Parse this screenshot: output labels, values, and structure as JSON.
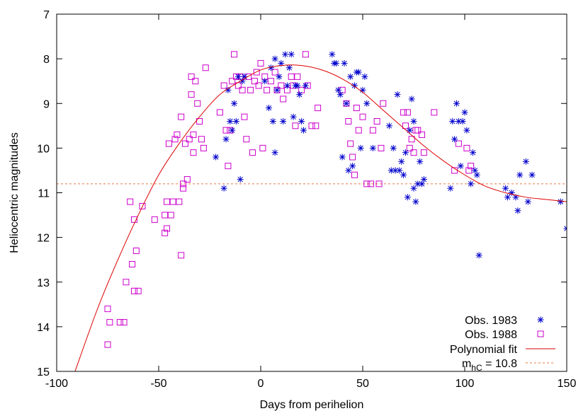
{
  "chart_data": {
    "type": "scatter",
    "xlabel": "Days from perihelion",
    "ylabel": "Heliocentric magnitudes",
    "xlim": [
      -100,
      150
    ],
    "ylim": [
      15,
      7
    ],
    "y_axis_inverted": true,
    "grid": false,
    "legend_position": "bottom-right",
    "x_ticks": [
      "-100",
      "-50",
      "0",
      "50",
      "100",
      "150"
    ],
    "y_ticks": [
      "7",
      "8",
      "9",
      "10",
      "11",
      "12",
      "13",
      "14",
      "15"
    ],
    "series": [
      {
        "name": "Obs. 1983",
        "marker": "asterisk",
        "color": "#0000cc",
        "points": [
          [
            -22,
            10.2
          ],
          [
            -18,
            10.9
          ],
          [
            -17,
            9.8
          ],
          [
            -16,
            8.7
          ],
          [
            -15,
            9.4
          ],
          [
            -14,
            9.6
          ],
          [
            -13,
            9.0
          ],
          [
            -12,
            9.4
          ],
          [
            -11,
            8.4
          ],
          [
            -10,
            10.7
          ],
          [
            -9,
            8.5
          ],
          [
            -8,
            8.4
          ],
          [
            2,
            8.5
          ],
          [
            4,
            9.1
          ],
          [
            5,
            8.2
          ],
          [
            6,
            9.4
          ],
          [
            7,
            10.1
          ],
          [
            7,
            8.0
          ],
          [
            8,
            8.7
          ],
          [
            9,
            8.4
          ],
          [
            10,
            8.1
          ],
          [
            11,
            9.4
          ],
          [
            12,
            7.9
          ],
          [
            13,
            8.6
          ],
          [
            14,
            8.2
          ],
          [
            15,
            7.9
          ],
          [
            16,
            9.3
          ],
          [
            17,
            8.6
          ],
          [
            18,
            8.6
          ],
          [
            19,
            8.8
          ],
          [
            20,
            9.4
          ],
          [
            21,
            9.6
          ],
          [
            22,
            8.6
          ],
          [
            35,
            7.9
          ],
          [
            36,
            8.1
          ],
          [
            37,
            8.1
          ],
          [
            38,
            8.7
          ],
          [
            39,
            8.8
          ],
          [
            40,
            10.2
          ],
          [
            41,
            8.1
          ],
          [
            42,
            9.0
          ],
          [
            43,
            10.5
          ],
          [
            44,
            8.4
          ],
          [
            45,
            10.4
          ],
          [
            46,
            8.6
          ],
          [
            47,
            8.3
          ],
          [
            48,
            8.3
          ],
          [
            49,
            10.0
          ],
          [
            50,
            8.7
          ],
          [
            51,
            8.4
          ],
          [
            52,
            9.0
          ],
          [
            55,
            10.0
          ],
          [
            63,
            9.5
          ],
          [
            64,
            10.5
          ],
          [
            65,
            10.0
          ],
          [
            66,
            10.5
          ],
          [
            67,
            8.8
          ],
          [
            68,
            10.5
          ],
          [
            69,
            10.3
          ],
          [
            70,
            10.6
          ],
          [
            71,
            10.1
          ],
          [
            72,
            11.1
          ],
          [
            73,
            9.6
          ],
          [
            74,
            8.9
          ],
          [
            75,
            10.9
          ],
          [
            75,
            9.4
          ],
          [
            76,
            11.2
          ],
          [
            77,
            10.8
          ],
          [
            78,
            10.3
          ],
          [
            79,
            10.8
          ],
          [
            80,
            10.7
          ],
          [
            93,
            10.9
          ],
          [
            94,
            9.4
          ],
          [
            95,
            9.8
          ],
          [
            96,
            9.0
          ],
          [
            97,
            9.4
          ],
          [
            98,
            10.4
          ],
          [
            99,
            9.4
          ],
          [
            100,
            9.2
          ],
          [
            101,
            9.6
          ],
          [
            103,
            10.8
          ],
          [
            104,
            10.1
          ],
          [
            105,
            10.5
          ],
          [
            106,
            10.6
          ],
          [
            107,
            12.4
          ],
          [
            120,
            10.9
          ],
          [
            121,
            11.1
          ],
          [
            123,
            11.0
          ],
          [
            125,
            11.1
          ],
          [
            126,
            11.4
          ],
          [
            127,
            10.6
          ],
          [
            130,
            10.3
          ],
          [
            131,
            11.2
          ],
          [
            133,
            10.6
          ],
          [
            147,
            11.2
          ],
          [
            150,
            11.8
          ]
        ]
      },
      {
        "name": "Obs. 1988",
        "marker": "square",
        "color": "#cc00cc",
        "points": [
          [
            -75,
            13.6
          ],
          [
            -75,
            14.4
          ],
          [
            -74,
            13.9
          ],
          [
            -69,
            13.9
          ],
          [
            -67,
            13.9
          ],
          [
            -66,
            13.0
          ],
          [
            -64,
            11.2
          ],
          [
            -63,
            12.6
          ],
          [
            -62,
            11.6
          ],
          [
            -62,
            13.2
          ],
          [
            -61,
            12.3
          ],
          [
            -60,
            13.2
          ],
          [
            -58,
            11.3
          ],
          [
            -52,
            11.6
          ],
          [
            -47,
            11.5
          ],
          [
            -47,
            11.9
          ],
          [
            -46,
            11.8
          ],
          [
            -46,
            11.2
          ],
          [
            -45,
            9.9
          ],
          [
            -44,
            11.5
          ],
          [
            -43,
            11.2
          ],
          [
            -42,
            9.8
          ],
          [
            -41,
            9.7
          ],
          [
            -40,
            11.2
          ],
          [
            -39,
            12.4
          ],
          [
            -39,
            9.3
          ],
          [
            -38,
            10.8
          ],
          [
            -38,
            10.9
          ],
          [
            -37,
            9.9
          ],
          [
            -36,
            10.7
          ],
          [
            -35,
            9.8
          ],
          [
            -34,
            8.8
          ],
          [
            -34,
            8.4
          ],
          [
            -33,
            9.7
          ],
          [
            -33,
            10.1
          ],
          [
            -32,
            8.5
          ],
          [
            -31,
            9.0
          ],
          [
            -30,
            9.4
          ],
          [
            -29,
            9.8
          ],
          [
            -28,
            10.0
          ],
          [
            -27,
            8.2
          ],
          [
            -20,
            9.2
          ],
          [
            -18,
            8.6
          ],
          [
            -17,
            9.6
          ],
          [
            -16,
            10.4
          ],
          [
            -15,
            9.6
          ],
          [
            -14,
            8.5
          ],
          [
            -13,
            7.9
          ],
          [
            -12,
            8.4
          ],
          [
            -11,
            8.6
          ],
          [
            -10,
            8.4
          ],
          [
            -9,
            8.7
          ],
          [
            -8,
            9.3
          ],
          [
            -7,
            9.8
          ],
          [
            -6,
            8.4
          ],
          [
            -5,
            8.7
          ],
          [
            -4,
            10.1
          ],
          [
            -3,
            8.5
          ],
          [
            -2,
            8.3
          ],
          [
            -1,
            8.6
          ],
          [
            0,
            8.1
          ],
          [
            1,
            10.0
          ],
          [
            2,
            8.4
          ],
          [
            3,
            8.7
          ],
          [
            5,
            8.5
          ],
          [
            7,
            8.3
          ],
          [
            8,
            8.7
          ],
          [
            10,
            8.6
          ],
          [
            11,
            8.9
          ],
          [
            13,
            8.7
          ],
          [
            15,
            8.4
          ],
          [
            16,
            8.6
          ],
          [
            17,
            9.5
          ],
          [
            18,
            8.4
          ],
          [
            20,
            8.7
          ],
          [
            22,
            7.9
          ],
          [
            23,
            8.6
          ],
          [
            25,
            9.5
          ],
          [
            27,
            9.5
          ],
          [
            28,
            9.1
          ],
          [
            40,
            8.7
          ],
          [
            42,
            9.0
          ],
          [
            43,
            9.4
          ],
          [
            44,
            9.9
          ],
          [
            45,
            10.2
          ],
          [
            46,
            10.6
          ],
          [
            47,
            9.1
          ],
          [
            48,
            9.6
          ],
          [
            50,
            9.3
          ],
          [
            52,
            10.8
          ],
          [
            54,
            10.8
          ],
          [
            55,
            9.6
          ],
          [
            57,
            9.4
          ],
          [
            58,
            10.8
          ],
          [
            59,
            10.0
          ],
          [
            60,
            9.0
          ],
          [
            70,
            9.2
          ],
          [
            71,
            9.5
          ],
          [
            72,
            9.2
          ],
          [
            73,
            10.0
          ],
          [
            74,
            9.8
          ],
          [
            75,
            10.1
          ],
          [
            76,
            9.6
          ],
          [
            77,
            9.6
          ],
          [
            79,
            9.7
          ],
          [
            80,
            10.1
          ],
          [
            85,
            9.2
          ],
          [
            95,
            10.5
          ],
          [
            97,
            9.9
          ],
          [
            101,
            10.0
          ],
          [
            102,
            10.5
          ],
          [
            103,
            10.4
          ]
        ]
      },
      {
        "name": "Polynomial fit",
        "line": "solid",
        "color": "#dd0000",
        "points": [
          [
            -91,
            15.0
          ],
          [
            -80,
            13.6
          ],
          [
            -70,
            12.5
          ],
          [
            -60,
            11.5
          ],
          [
            -50,
            10.6
          ],
          [
            -40,
            9.9
          ],
          [
            -30,
            9.3
          ],
          [
            -20,
            8.8
          ],
          [
            -10,
            8.5
          ],
          [
            0,
            8.25
          ],
          [
            10,
            8.15
          ],
          [
            20,
            8.15
          ],
          [
            30,
            8.25
          ],
          [
            40,
            8.45
          ],
          [
            50,
            8.75
          ],
          [
            60,
            9.15
          ],
          [
            70,
            9.55
          ],
          [
            80,
            9.95
          ],
          [
            90,
            10.3
          ],
          [
            100,
            10.6
          ],
          [
            110,
            10.85
          ],
          [
            120,
            11.0
          ],
          [
            130,
            11.1
          ],
          [
            140,
            11.15
          ],
          [
            150,
            11.2
          ]
        ]
      },
      {
        "name": "m_hC = 10.8",
        "label_main": "m",
        "label_sub": "hC",
        "label_rest": " = 10.8",
        "line": "dashed",
        "color": "#e87840",
        "y": 10.8
      }
    ]
  }
}
